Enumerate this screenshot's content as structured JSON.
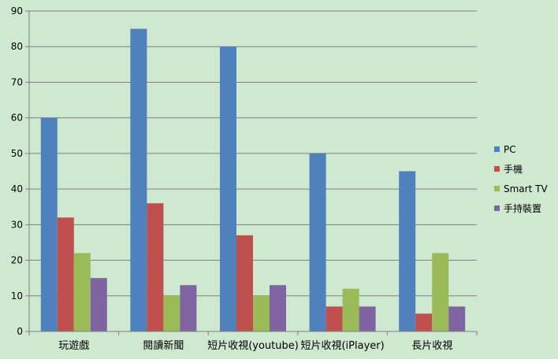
{
  "chart_data": {
    "type": "bar",
    "title": "",
    "xlabel": "",
    "ylabel": "",
    "categories": [
      "玩遊戲",
      "閱讀新聞",
      "短片收視(youtube)",
      "短片收視(iPlayer)",
      "長片收視"
    ],
    "series": [
      {
        "name": "PC",
        "color": "#4f81bd",
        "values": [
          60,
          85,
          80,
          50,
          45
        ]
      },
      {
        "name": "手機",
        "color": "#c0504d",
        "values": [
          32,
          36,
          27,
          7,
          5
        ]
      },
      {
        "name": "Smart TV",
        "color": "#9bbb59",
        "values": [
          22,
          10,
          10,
          12,
          22
        ]
      },
      {
        "name": "手持裝置",
        "color": "#8064a2",
        "values": [
          15,
          13,
          13,
          7,
          7
        ]
      }
    ],
    "ylim": [
      0,
      90
    ],
    "yticks": [
      0,
      10,
      20,
      30,
      40,
      50,
      60,
      70,
      80,
      90
    ],
    "grid": true,
    "legend_position": "right"
  }
}
